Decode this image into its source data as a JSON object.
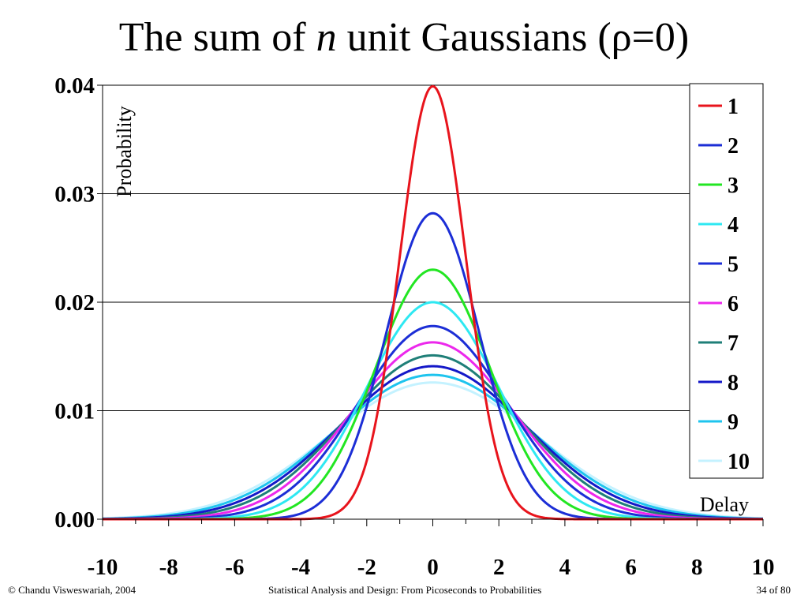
{
  "slide": {
    "title_pre": "The sum of ",
    "title_var": "n",
    "title_post": " unit Gaussians (ρ=0)",
    "footer_left": "© Chandu Visweswariah, 2004",
    "footer_center": "Statistical Analysis and Design: From Picoseconds to Probabilities",
    "footer_right": "34 of 80"
  },
  "chart_data": {
    "type": "line",
    "title": "",
    "xlabel": "Delay",
    "ylabel": "Probability",
    "xlim": [
      -10,
      10
    ],
    "ylim": [
      0,
      0.04
    ],
    "x_ticks": [
      -10,
      -8,
      -6,
      -4,
      -2,
      0,
      2,
      4,
      6,
      8,
      10
    ],
    "x_tick_labels": [
      "-10",
      "-8",
      "-6",
      "-4",
      "-2",
      "0",
      "2",
      "4",
      "6",
      "8",
      "10"
    ],
    "y_ticks": [
      0,
      0.01,
      0.02,
      0.03,
      0.04
    ],
    "y_tick_labels": [
      "0.00",
      "0.01",
      "0.02",
      "0.03",
      "0.04"
    ],
    "grid": "horizontal",
    "legend_position": "top-right",
    "series_form": "Gaussian density of the sum of n unit Gaussians: mean 0, variance n, scaled so the n=1 peak is 0.04",
    "series": [
      {
        "name": "1",
        "n": 1,
        "peak": 0.0399,
        "color": "#e8141c"
      },
      {
        "name": "2",
        "n": 2,
        "peak": 0.0282,
        "color": "#1c2ed6"
      },
      {
        "name": "3",
        "n": 3,
        "peak": 0.023,
        "color": "#22e622"
      },
      {
        "name": "4",
        "n": 4,
        "peak": 0.02,
        "color": "#2ee8f2"
      },
      {
        "name": "5",
        "n": 5,
        "peak": 0.0178,
        "color": "#1c2ed6"
      },
      {
        "name": "6",
        "n": 6,
        "peak": 0.0163,
        "color": "#ec28ec"
      },
      {
        "name": "7",
        "n": 7,
        "peak": 0.0151,
        "color": "#1f7f78"
      },
      {
        "name": "8",
        "n": 8,
        "peak": 0.0141,
        "color": "#1418c8"
      },
      {
        "name": "9",
        "n": 9,
        "peak": 0.0133,
        "color": "#1ec4ee"
      },
      {
        "name": "10",
        "n": 10,
        "peak": 0.0126,
        "color": "#c4f2ff"
      }
    ]
  }
}
